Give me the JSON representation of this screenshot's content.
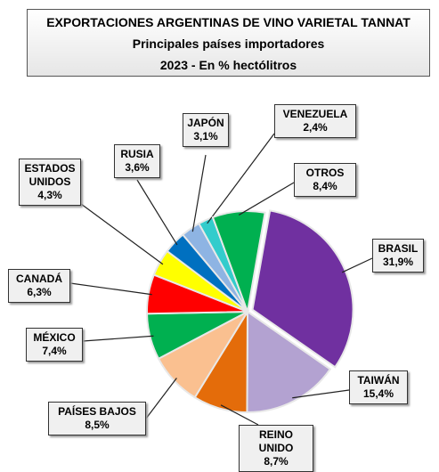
{
  "chart_data": {
    "type": "pie",
    "title": "EXPORTACIONES ARGENTINAS DE VINO VARIETAL TANNAT",
    "subtitle": [
      "Principales países importadores",
      "2023 - En % hectólitros"
    ],
    "categories": [
      "BRASIL",
      "TAIWÁN",
      "REINO UNIDO",
      "PAÍSES BAJOS",
      "MÉXICO",
      "CANADÁ",
      "ESTADOS UNIDOS",
      "RUSIA",
      "JAPÓN",
      "VENEZUELA",
      "OTROS"
    ],
    "values": [
      31.9,
      15.4,
      8.7,
      8.5,
      7.4,
      6.3,
      4.3,
      3.6,
      3.1,
      2.4,
      8.4
    ],
    "value_labels": [
      "31,9%",
      "15,4%",
      "8,7%",
      "8,5%",
      "7,4%",
      "6,3%",
      "4,3%",
      "3,6%",
      "3,1%",
      "2,4%",
      "8,4%"
    ],
    "colors": [
      "#7030a0",
      "#b3a2d1",
      "#e46c0a",
      "#fac090",
      "#00b050",
      "#ff0000",
      "#ffff00",
      "#0070c0",
      "#8eb4e3",
      "#33cccc",
      "#00b050"
    ]
  }
}
